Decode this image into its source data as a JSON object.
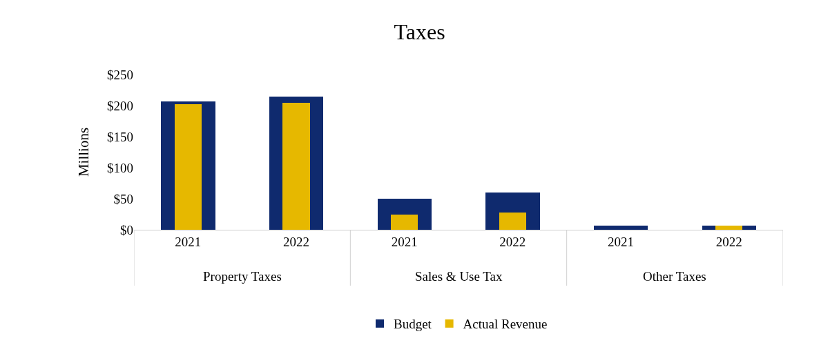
{
  "chart_data": {
    "type": "bar",
    "title": "Taxes",
    "ylabel": "Millions",
    "categories": [
      "2021",
      "2022",
      "2021",
      "2022",
      "2021",
      "2022"
    ],
    "annotations": [
      "Property Taxes",
      "Sales & Use Tax",
      "Other Taxes"
    ],
    "series": [
      {
        "name": "Budget",
        "color": "#0f2a6e",
        "values": [
          207,
          215,
          50,
          60,
          7,
          7
        ]
      },
      {
        "name": "Actual Revenue",
        "color": "#e6b800",
        "values": [
          202,
          205,
          24,
          28,
          0,
          7
        ]
      }
    ],
    "ylim": [
      0,
      250
    ],
    "yticks": [
      {
        "value": 0,
        "label": "$0"
      },
      {
        "value": 50,
        "label": "$50"
      },
      {
        "value": 100,
        "label": "$100"
      },
      {
        "value": 150,
        "label": "$150"
      },
      {
        "value": 200,
        "label": "$200"
      },
      {
        "value": 250,
        "label": "$250"
      }
    ],
    "grid": false,
    "legend": "bottom"
  }
}
